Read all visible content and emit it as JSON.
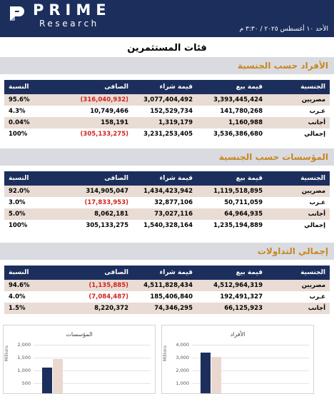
{
  "header": {
    "logo_primary": "PRIME",
    "logo_secondary": "Research",
    "date": "الأحد ١٠ أغسطس ٢٠٢٥ / ٣:٣٠ م"
  },
  "page_title": "فئات المستثمرين",
  "colors": {
    "navy": "#1c2e5c",
    "accent": "#c8871e",
    "negative": "#d1221c",
    "row_shade": "#e9dcd4"
  },
  "columns": {
    "ratio": "النسبة",
    "net": "الصافى",
    "buy": "قيمة شراء",
    "sell": "قيمة بيع",
    "nationality": "الجنسية"
  },
  "sections": [
    {
      "title": "الأفراد حسب الجنسية",
      "rows": [
        {
          "ratio": "95.6%",
          "net": "(316,040,932)",
          "buy": "3,077,404,492",
          "sell": "3,393,445,424",
          "nationality": "مصريين"
        },
        {
          "ratio": "4.3%",
          "net": "10,749,466",
          "buy": "152,529,734",
          "sell": "141,780,268",
          "nationality": "عـرب"
        },
        {
          "ratio": "0.04%",
          "net": "158,191",
          "buy": "1,319,179",
          "sell": "1,160,988",
          "nationality": "أجانب"
        },
        {
          "ratio": "100%",
          "net": "(305,133,275)",
          "buy": "3,231,253,405",
          "sell": "3,536,386,680",
          "nationality": "إجمالي"
        }
      ]
    },
    {
      "title": "المؤسسات حسب الجنسية",
      "rows": [
        {
          "ratio": "92.0%",
          "net": "314,905,047",
          "buy": "1,434,423,942",
          "sell": "1,119,518,895",
          "nationality": "مصريين"
        },
        {
          "ratio": "3.0%",
          "net": "(17,833,953)",
          "buy": "32,877,106",
          "sell": "50,711,059",
          "nationality": "عـرب"
        },
        {
          "ratio": "5.0%",
          "net": "8,062,181",
          "buy": "73,027,116",
          "sell": "64,964,935",
          "nationality": "أجانب"
        },
        {
          "ratio": "100%",
          "net": "305,133,275",
          "buy": "1,540,328,164",
          "sell": "1,235,194,889",
          "nationality": "إجمالي"
        }
      ]
    },
    {
      "title": "إجمالي التداولات",
      "rows": [
        {
          "ratio": "94.6%",
          "net": "(1,135,885)",
          "buy": "4,511,828,434",
          "sell": "4,512,964,319",
          "nationality": "مصريين"
        },
        {
          "ratio": "4.0%",
          "net": "(7,084,487)",
          "buy": "185,406,840",
          "sell": "192,491,327",
          "nationality": "عـرب"
        },
        {
          "ratio": "1.5%",
          "net": "8,220,372",
          "buy": "74,346,295",
          "sell": "66,125,923",
          "nationality": "أجانب"
        }
      ]
    }
  ],
  "chart_data": [
    {
      "type": "bar",
      "title": "المؤسسات",
      "ylabel": "Millions",
      "yticks": [
        "2,000",
        "1,500",
        "1,000",
        "500"
      ],
      "ylim": [
        0,
        2000
      ],
      "series": [
        {
          "values": [
            1119.5
          ],
          "color": "#1c2e5c"
        },
        {
          "values": [
            1434.4
          ],
          "color": "#ead8cf"
        }
      ]
    },
    {
      "type": "bar",
      "title": "الأفراد",
      "ylabel": "Millions",
      "yticks": [
        "4,000",
        "3,000",
        "2,000",
        "1,000"
      ],
      "ylim": [
        0,
        4000
      ],
      "series": [
        {
          "values": [
            3393.4
          ],
          "color": "#1c2e5c"
        },
        {
          "values": [
            3077.4
          ],
          "color": "#ead8cf"
        }
      ]
    }
  ]
}
